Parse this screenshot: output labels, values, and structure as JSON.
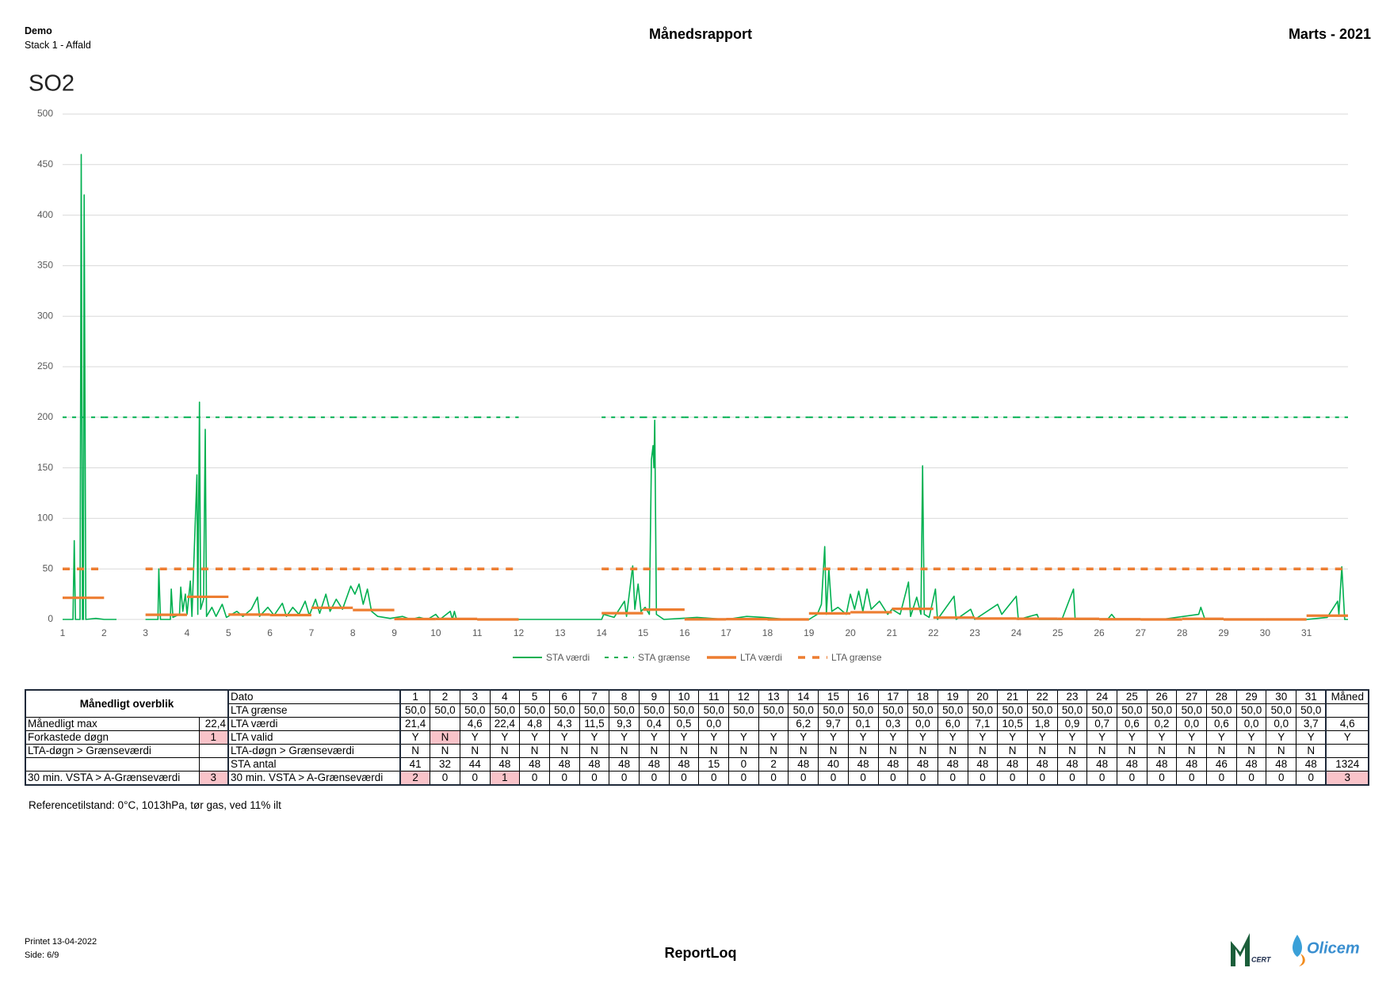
{
  "header": {
    "company": "Demo",
    "stack": "Stack 1 - Affald",
    "title": "Månedsrapport",
    "period": "Marts - 2021"
  },
  "chart_data": {
    "type": "line",
    "title": "SO2",
    "xlim": [
      1,
      32
    ],
    "xticks": [
      1,
      2,
      3,
      4,
      5,
      6,
      7,
      8,
      9,
      10,
      11,
      12,
      13,
      14,
      15,
      16,
      17,
      18,
      19,
      20,
      21,
      22,
      23,
      24,
      25,
      26,
      27,
      28,
      29,
      30,
      31
    ],
    "ylim": [
      0,
      500
    ],
    "yticks": [
      0,
      50,
      100,
      150,
      200,
      250,
      300,
      350,
      400,
      450,
      500
    ],
    "grid": true,
    "x": [
      1,
      2,
      3,
      4,
      5,
      6,
      7,
      8,
      9,
      10,
      11,
      12,
      13,
      14,
      15,
      16,
      17,
      18,
      19,
      20,
      21,
      22,
      23,
      24,
      25,
      26,
      27,
      28,
      29,
      30,
      31
    ],
    "series": [
      {
        "name": "STA værdi",
        "color": "#00b050",
        "style": "solid",
        "x": [
          1.0,
          1.25,
          1.28,
          1.31,
          1.42,
          1.45,
          1.48,
          1.5,
          1.52,
          1.56,
          1.8,
          2.0,
          2.3,
          2.6,
          3.0,
          3.3,
          3.32,
          3.36,
          3.6,
          3.62,
          3.66,
          3.82,
          3.85,
          3.9,
          3.96,
          4.0,
          4.08,
          4.12,
          4.24,
          4.26,
          4.3,
          4.33,
          4.4,
          4.44,
          4.47,
          4.6,
          4.7,
          4.85,
          4.95,
          5.2,
          5.35,
          5.55,
          5.7,
          5.75,
          5.95,
          6.1,
          6.3,
          6.4,
          6.55,
          6.7,
          6.85,
          6.95,
          7.1,
          7.2,
          7.35,
          7.45,
          7.6,
          7.75,
          7.95,
          8.05,
          8.15,
          8.25,
          8.35,
          8.45,
          8.6,
          8.9,
          9.2,
          9.4,
          9.6,
          9.8,
          10.0,
          10.1,
          10.35,
          10.4,
          10.45,
          10.5,
          11.0,
          11.5,
          12.5,
          13.5,
          14.0,
          14.05,
          14.3,
          14.55,
          14.6,
          14.75,
          14.8,
          14.88,
          14.95,
          15.05,
          15.15,
          15.2,
          15.24,
          15.26,
          15.28,
          15.32,
          15.5,
          16.3,
          17.0,
          17.5,
          17.9,
          18.5,
          19.0,
          19.2,
          19.3,
          19.38,
          19.42,
          19.48,
          19.55,
          19.7,
          19.9,
          20.0,
          20.1,
          20.2,
          20.3,
          20.4,
          20.5,
          20.7,
          20.9,
          21.0,
          21.2,
          21.4,
          21.45,
          21.6,
          21.7,
          21.74,
          21.78,
          21.9,
          22.05,
          22.1,
          22.5,
          22.55,
          22.9,
          23.0,
          23.55,
          23.65,
          24.0,
          24.05,
          24.5,
          24.55,
          25.1,
          25.38,
          25.42,
          26.2,
          26.3,
          26.4,
          27.5,
          28.4,
          28.45,
          28.55,
          29.5,
          31.0,
          31.5,
          31.75,
          31.78,
          31.85,
          31.92,
          32.0
        ],
        "values": [
          0,
          0,
          78,
          0,
          0,
          460,
          0,
          0,
          420,
          0,
          1,
          0,
          0,
          null,
          0,
          0,
          50,
          0,
          0,
          30,
          2,
          5,
          32,
          8,
          25,
          5,
          38,
          3,
          143,
          5,
          215,
          10,
          20,
          188,
          3,
          12,
          3,
          15,
          2,
          8,
          3,
          10,
          22,
          3,
          12,
          4,
          16,
          3,
          12,
          5,
          18,
          4,
          20,
          6,
          25,
          8,
          20,
          10,
          33,
          25,
          35,
          15,
          30,
          8,
          3,
          1,
          3,
          0,
          2,
          0,
          5,
          0,
          8,
          0,
          8,
          0,
          0,
          0,
          0,
          0,
          0,
          5,
          2,
          18,
          3,
          53,
          10,
          35,
          8,
          12,
          5,
          158,
          172,
          150,
          197,
          5,
          0,
          2,
          0,
          3,
          2,
          0,
          0,
          5,
          15,
          72,
          5,
          50,
          8,
          12,
          5,
          25,
          10,
          28,
          8,
          30,
          10,
          18,
          5,
          10,
          5,
          37,
          3,
          22,
          5,
          152,
          5,
          2,
          30,
          0,
          23,
          0,
          10,
          0,
          15,
          5,
          23,
          0,
          5,
          0,
          0,
          30,
          0,
          0,
          5,
          0,
          0,
          5,
          12,
          0,
          0,
          0,
          2,
          18,
          5,
          52,
          0,
          0
        ]
      },
      {
        "name": "STA grænse",
        "color": "#00b050",
        "style": "dotted",
        "values": [
          200,
          200,
          200,
          200,
          200,
          200,
          200,
          200,
          200,
          200,
          200,
          null,
          null,
          200,
          200,
          200,
          200,
          200,
          200,
          200,
          200,
          200,
          200,
          200,
          200,
          200,
          200,
          200,
          200,
          200,
          200
        ]
      },
      {
        "name": "LTA værdi",
        "color": "#ed7d31",
        "style": "solid",
        "values": [
          21.4,
          null,
          4.6,
          22.4,
          4.8,
          4.3,
          11.5,
          9.3,
          0.4,
          0.5,
          0.0,
          null,
          null,
          6.2,
          9.7,
          0.1,
          0.3,
          0.0,
          6.0,
          7.1,
          10.5,
          1.8,
          0.9,
          0.7,
          0.6,
          0.2,
          0.0,
          0.6,
          0.0,
          0.0,
          3.7
        ]
      },
      {
        "name": "LTA grænse",
        "color": "#ed7d31",
        "style": "dashed",
        "values": [
          50,
          null,
          50,
          50,
          50,
          50,
          50,
          50,
          50,
          50,
          50,
          null,
          null,
          50,
          50,
          50,
          50,
          50,
          50,
          50,
          50,
          50,
          50,
          50,
          50,
          50,
          50,
          50,
          50,
          50,
          50
        ]
      }
    ]
  },
  "overview": {
    "title": "Månedligt overblik",
    "rows": [
      [
        "Månedligt max",
        "22,4"
      ],
      [
        "Forkastede døgn",
        "1"
      ],
      [
        "LTA-døgn > Grænseværdi",
        null
      ],
      [
        null,
        null
      ],
      [
        "30 min. VSTA > A-Grænseværdi",
        "3"
      ]
    ]
  },
  "table": {
    "rows": [
      [
        "Dato",
        "1",
        "2",
        "3",
        "4",
        "5",
        "6",
        "7",
        "8",
        "9",
        "10",
        "11",
        "12",
        "13",
        "14",
        "15",
        "16",
        "17",
        "18",
        "19",
        "20",
        "21",
        "22",
        "23",
        "24",
        "25",
        "26",
        "27",
        "28",
        "29",
        "30",
        "31",
        "Måned"
      ],
      [
        "LTA grænse",
        "50,0",
        "50,0",
        "50,0",
        "50,0",
        "50,0",
        "50,0",
        "50,0",
        "50,0",
        "50,0",
        "50,0",
        "50,0",
        "50,0",
        "50,0",
        "50,0",
        "50,0",
        "50,0",
        "50,0",
        "50,0",
        "50,0",
        "50,0",
        "50,0",
        "50,0",
        "50,0",
        "50,0",
        "50,0",
        "50,0",
        "50,0",
        "50,0",
        "50,0",
        "50,0",
        "50,0",
        null
      ],
      [
        "LTA værdi",
        "21,4",
        null,
        "4,6",
        "22,4",
        "4,8",
        "4,3",
        "11,5",
        "9,3",
        "0,4",
        "0,5",
        "0,0",
        null,
        null,
        "6,2",
        "9,7",
        "0,1",
        "0,3",
        "0,0",
        "6,0",
        "7,1",
        "10,5",
        "1,8",
        "0,9",
        "0,7",
        "0,6",
        "0,2",
        "0,0",
        "0,6",
        "0,0",
        "0,0",
        "3,7",
        "4,6"
      ],
      [
        "LTA valid",
        "Y",
        "N",
        "Y",
        "Y",
        "Y",
        "Y",
        "Y",
        "Y",
        "Y",
        "Y",
        "Y",
        "Y",
        "Y",
        "Y",
        "Y",
        "Y",
        "Y",
        "Y",
        "Y",
        "Y",
        "Y",
        "Y",
        "Y",
        "Y",
        "Y",
        "Y",
        "Y",
        "Y",
        "Y",
        "Y",
        "Y",
        "Y"
      ],
      [
        "LTA-døgn > Grænseværdi",
        "N",
        "N",
        "N",
        "N",
        "N",
        "N",
        "N",
        "N",
        "N",
        "N",
        "N",
        "N",
        "N",
        "N",
        "N",
        "N",
        "N",
        "N",
        "N",
        "N",
        "N",
        "N",
        "N",
        "N",
        "N",
        "N",
        "N",
        "N",
        "N",
        "N",
        "N",
        null
      ],
      [
        "STA antal",
        "41",
        "32",
        "44",
        "48",
        "48",
        "48",
        "48",
        "48",
        "48",
        "48",
        "15",
        "0",
        "2",
        "48",
        "40",
        "48",
        "48",
        "48",
        "48",
        "48",
        "48",
        "48",
        "48",
        "48",
        "48",
        "48",
        "48",
        "46",
        "48",
        "48",
        "48",
        "1324"
      ],
      [
        "30 min. VSTA > A-Grænseværdi",
        "2",
        "0",
        "0",
        "1",
        "0",
        "0",
        "0",
        "0",
        "0",
        "0",
        "0",
        "0",
        "0",
        "0",
        "0",
        "0",
        "0",
        "0",
        "0",
        "0",
        "0",
        "0",
        "0",
        "0",
        "0",
        "0",
        "0",
        "0",
        "0",
        "0",
        "0",
        "3"
      ]
    ]
  },
  "note": "Referencetilstand: 0°C, 1013hPa, tør gas, ved 11% ilt",
  "footer": {
    "printed": "Printet 13-04-2022",
    "page": "Side: 6/9",
    "product": "ReportLoq",
    "logos": [
      "CERT",
      "Olicem"
    ]
  }
}
